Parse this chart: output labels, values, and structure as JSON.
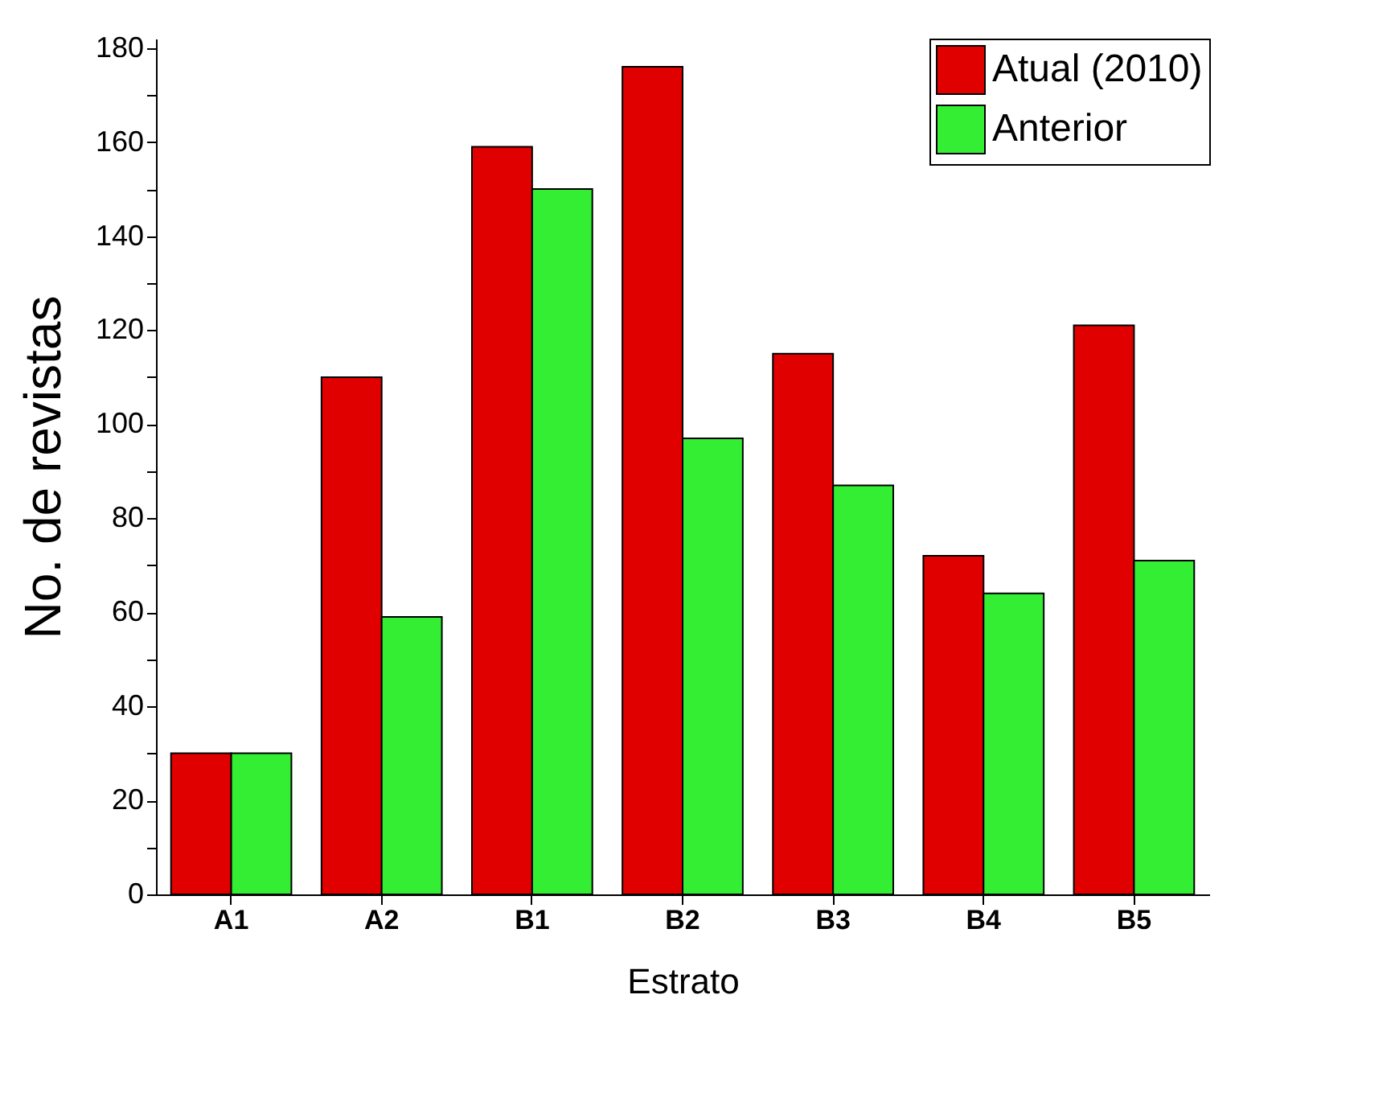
{
  "chart_data": {
    "type": "bar",
    "xlabel": "Estrato",
    "ylabel": "No. de revistas",
    "categories": [
      "A1",
      "A2",
      "B1",
      "B2",
      "B3",
      "B4",
      "B5"
    ],
    "series": [
      {
        "name": "Atual (2010)",
        "color": "#e00000",
        "values": [
          30,
          110,
          159,
          176,
          115,
          72,
          121
        ]
      },
      {
        "name": "Anterior",
        "color": "#33ee33",
        "values": [
          30,
          59,
          150,
          97,
          87,
          64,
          71
        ]
      }
    ],
    "ylim": [
      0,
      182
    ],
    "yticks": [
      0,
      {
        "value": 10,
        "label": null
      },
      20,
      {
        "value": 30,
        "label": null
      },
      40,
      {
        "value": 50,
        "label": null
      },
      60,
      {
        "value": 70,
        "label": null
      },
      80,
      {
        "value": 90,
        "label": null
      },
      100,
      {
        "value": 110,
        "label": null
      },
      120,
      {
        "value": 130,
        "label": null
      },
      140,
      {
        "value": 150,
        "label": null
      },
      160,
      {
        "value": 170,
        "label": null
      },
      180
    ],
    "grid": false,
    "legend": "top right"
  }
}
